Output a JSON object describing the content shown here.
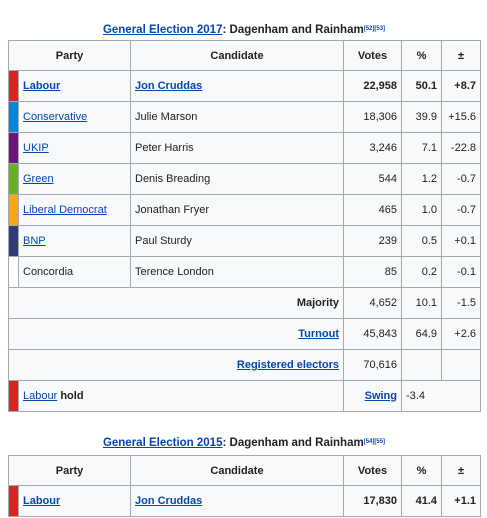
{
  "election_2017": {
    "caption_link": "General Election 2017",
    "caption_rest": ": Dagenham and Rainham",
    "caption_refs": "[52][53]",
    "headers": {
      "party": "Party",
      "candidate": "Candidate",
      "votes": "Votes",
      "pct": "%",
      "change": "±"
    },
    "rows": [
      {
        "party": "Labour",
        "candidate": "Jon Cruddas",
        "votes": "22,958",
        "pct": "50.1",
        "change": "+8.7",
        "color": "#dc241f",
        "winner": true,
        "party_link": true,
        "candidate_link": true
      },
      {
        "party": "Conservative",
        "candidate": "Julie Marson",
        "votes": "18,306",
        "pct": "39.9",
        "change": "+15.6",
        "color": "#0087dc",
        "winner": false,
        "party_link": true,
        "candidate_link": false
      },
      {
        "party": "UKIP",
        "candidate": "Peter Harris",
        "votes": "3,246",
        "pct": "7.1",
        "change": "-22.8",
        "color": "#70147a",
        "winner": false,
        "party_link": true,
        "candidate_link": false
      },
      {
        "party": "Green",
        "candidate": "Denis Breading",
        "votes": "544",
        "pct": "1.2",
        "change": "-0.7",
        "color": "#6ab023",
        "winner": false,
        "party_link": true,
        "candidate_link": false
      },
      {
        "party": "Liberal Democrat",
        "candidate": "Jonathan Fryer",
        "votes": "465",
        "pct": "1.0",
        "change": "-0.7",
        "color": "#faa61a",
        "winner": false,
        "party_link": true,
        "candidate_link": false
      },
      {
        "party": "BNP",
        "candidate": "Paul Sturdy",
        "votes": "239",
        "pct": "0.5",
        "change": "+0.1",
        "color": "#2e3b74",
        "winner": false,
        "party_link": true,
        "candidate_link": false
      },
      {
        "party": "Concordia",
        "candidate": "Terence London",
        "votes": "85",
        "pct": "0.2",
        "change": "-0.1",
        "color": "#ffffff",
        "winner": false,
        "party_link": false,
        "candidate_link": false
      }
    ],
    "majority": {
      "label": "Majority",
      "votes": "4,652",
      "pct": "10.1",
      "change": "-1.5"
    },
    "turnout": {
      "label": "Turnout",
      "votes": "45,843",
      "pct": "64.9",
      "change": "+2.6"
    },
    "registered": {
      "label": "Registered electors",
      "votes": "70,616"
    },
    "hold": {
      "party": "Labour",
      "word": "hold",
      "swing_label": "Swing",
      "swing_value": "-3.4",
      "color": "#dc241f"
    }
  },
  "election_2015": {
    "caption_link": "General Election 2015",
    "caption_rest": ": Dagenham and Rainham",
    "caption_refs": "[54][55]",
    "headers": {
      "party": "Party",
      "candidate": "Candidate",
      "votes": "Votes",
      "pct": "%",
      "change": "±"
    },
    "rows": [
      {
        "party": "Labour",
        "candidate": "Jon Cruddas",
        "votes": "17,830",
        "pct": "41.4",
        "change": "+1.1",
        "color": "#dc241f"
      }
    ]
  }
}
